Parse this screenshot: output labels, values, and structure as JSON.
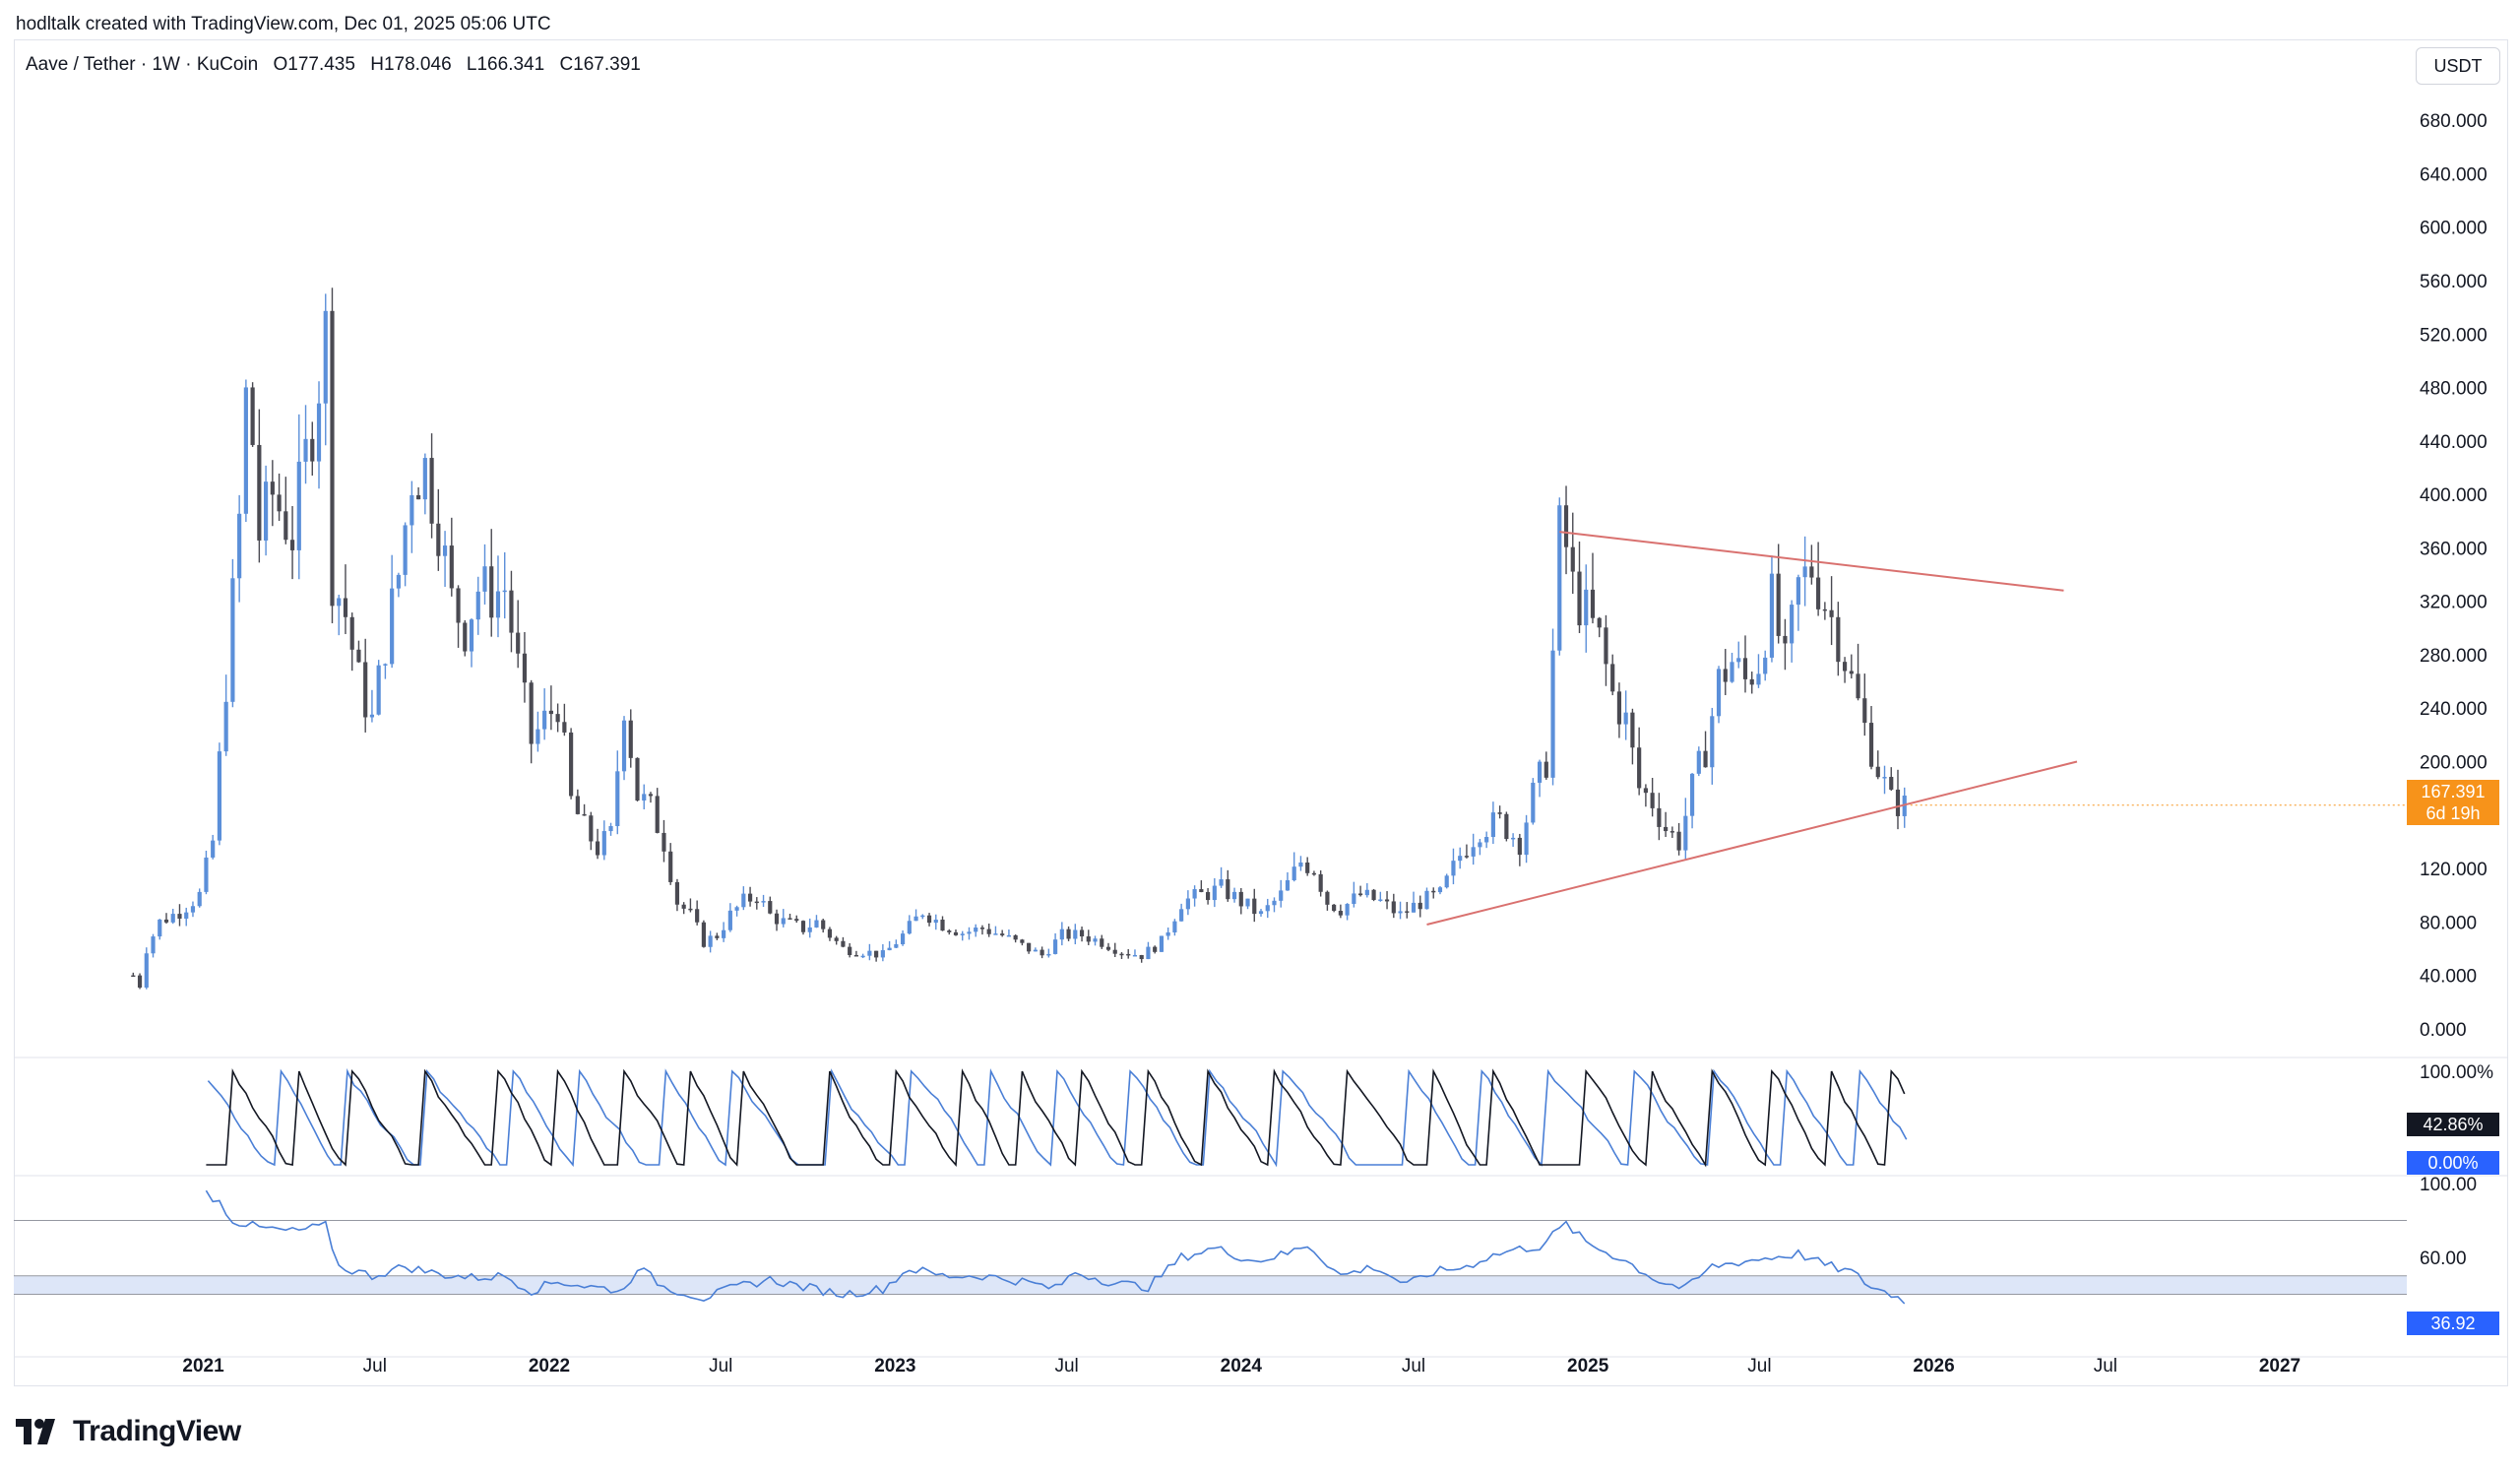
{
  "caption": "hodltalk created with TradingView.com, Dec 01, 2025 05:06 UTC",
  "legend": {
    "symbol": "Aave / Tether · 1W · KuCoin",
    "open": "O177.435",
    "high": "H178.046",
    "low": "L166.341",
    "close": "C167.391"
  },
  "currency_button": "USDT",
  "brand": "TradingView",
  "colors": {
    "up": "#5b8fd9",
    "down": "#4a4a52",
    "trendline": "#d9716f",
    "price_badge": "#f7931a",
    "stoch_k": "#131722",
    "stoch_d": "#4a7fd6",
    "rsi": "#4a7fd6",
    "rsi_band": "#dde6f8"
  },
  "price_badge": {
    "price": "167.391",
    "countdown": "6d 19h"
  },
  "stoch_labels": {
    "k": "42.86%",
    "d": "0.00%"
  },
  "rsi_label": "36.92",
  "chart_data": [
    {
      "type": "candlestick",
      "title": "",
      "interval": "1W",
      "ylim": [
        -20,
        700
      ],
      "y_ticks": [
        "680.000",
        "640.000",
        "600.000",
        "560.000",
        "520.000",
        "480.000",
        "440.000",
        "400.000",
        "360.000",
        "320.000",
        "280.000",
        "240.000",
        "200.000",
        "160.000",
        "120.000",
        "80.000",
        "40.000",
        "0.000"
      ],
      "x_range": [
        "2020-06-15",
        "2027-05-15"
      ],
      "x_ticks": [
        {
          "date": "2021-01-01",
          "label": "2021",
          "bold": true
        },
        {
          "date": "2021-07-01",
          "label": "Jul",
          "bold": false
        },
        {
          "date": "2022-01-01",
          "label": "2022",
          "bold": true
        },
        {
          "date": "2022-07-01",
          "label": "Jul",
          "bold": false
        },
        {
          "date": "2023-01-01",
          "label": "2023",
          "bold": true
        },
        {
          "date": "2023-07-01",
          "label": "Jul",
          "bold": false
        },
        {
          "date": "2024-01-01",
          "label": "2024",
          "bold": true
        },
        {
          "date": "2024-07-01",
          "label": "Jul",
          "bold": false
        },
        {
          "date": "2025-01-01",
          "label": "2025",
          "bold": true
        },
        {
          "date": "2025-07-01",
          "label": "Jul",
          "bold": false
        },
        {
          "date": "2026-01-01",
          "label": "2026",
          "bold": true
        },
        {
          "date": "2026-07-01",
          "label": "Jul",
          "bold": false
        },
        {
          "date": "2027-01-01",
          "label": "2027",
          "bold": true
        }
      ],
      "keypoints": [
        [
          "2020-10-19",
          40,
          "2020-10-26",
          32,
          "2020-11-02",
          60,
          "2020-11-16",
          80,
          "2020-12-07",
          88,
          "2020-12-28",
          100,
          "2021-01-11",
          140,
          "2021-01-25",
          260,
          "2021-02-08",
          380,
          "2021-02-15",
          470,
          "2021-02-22",
          440,
          "2021-03-01",
          370,
          "2021-03-15",
          400,
          "2021-04-05",
          370,
          "2021-04-26",
          455,
          "2021-05-10",
          520,
          "2021-05-17",
          340,
          "2021-05-31",
          310,
          "2021-06-14",
          260,
          "2021-06-28",
          230,
          "2021-07-12",
          290,
          "2021-07-26",
          340,
          "2021-08-09",
          415,
          "2021-08-23",
          420,
          "2021-09-06",
          380,
          "2021-09-20",
          320,
          "2021-10-04",
          300,
          "2021-10-18",
          330,
          "2021-11-01",
          325,
          "2021-11-15",
          330,
          "2021-11-29",
          270,
          "2021-12-13",
          215,
          "2021-12-27",
          230,
          "2022-01-10",
          245,
          "2022-01-24",
          170,
          "2022-02-07",
          150,
          "2022-02-21",
          135,
          "2022-03-07",
          145,
          "2022-03-21",
          245,
          "2022-04-04",
          175,
          "2022-04-18",
          165,
          "2022-05-02",
          140,
          "2022-05-16",
          95,
          "2022-05-30",
          85,
          "2022-06-13",
          65,
          "2022-06-27",
          70,
          "2022-07-11",
          85,
          "2022-07-25",
          95,
          "2022-08-08",
          100,
          "2022-08-22",
          85,
          "2022-09-05",
          80,
          "2022-09-26",
          75,
          "2022-10-10",
          80,
          "2022-11-07",
          60,
          "2022-11-28",
          58,
          "2022-12-19",
          55,
          "2023-01-09",
          70,
          "2023-01-30",
          88,
          "2023-02-20",
          78,
          "2023-03-13",
          72,
          "2023-04-03",
          75,
          "2023-04-24",
          70,
          "2023-05-15",
          62,
          "2023-06-05",
          55,
          "2023-06-26",
          70,
          "2023-07-17",
          70,
          "2023-08-07",
          65,
          "2023-08-28",
          58,
          "2023-09-18",
          55,
          "2023-10-09",
          65,
          "2023-10-30",
          95,
          "2023-11-20",
          100,
          "2023-12-11",
          105,
          "2024-01-01",
          95,
          "2024-01-22",
          85,
          "2024-02-12",
          100,
          "2024-03-04",
          125,
          "2024-03-18",
          120,
          "2024-04-01",
          95,
          "2024-04-15",
          90,
          "2024-05-06",
          100,
          "2024-05-27",
          95,
          "2024-06-17",
          85,
          "2024-07-08",
          95,
          "2024-07-29",
          100,
          "2024-08-19",
          130,
          "2024-09-09",
          150,
          "2024-09-30",
          155,
          "2024-10-21",
          140,
          "2024-11-04",
          175,
          "2024-11-18",
          200,
          "2024-11-25",
          280,
          "2024-12-02",
          370,
          "2024-12-09",
          360,
          "2024-12-16",
          330,
          "2024-12-30",
          310,
          "2025-01-13",
          290,
          "2025-01-27",
          250,
          "2025-02-10",
          230,
          "2025-02-24",
          180,
          "2025-03-10",
          170,
          "2025-03-24",
          150,
          "2025-04-07",
          140,
          "2025-04-21",
          180,
          "2025-05-05",
          210,
          "2025-05-19",
          260,
          "2025-06-02",
          275,
          "2025-06-16",
          260,
          "2025-06-30",
          275,
          "2025-07-14",
          320,
          "2025-07-28",
          270,
          "2025-08-11",
          330,
          "2025-08-25",
          345,
          "2025-09-08",
          320,
          "2025-09-22",
          295,
          "2025-10-06",
          260,
          "2025-10-20",
          225,
          "2025-11-03",
          195,
          "2025-11-17",
          170,
          "2025-12-01",
          167
        ]
      ],
      "trendlines": [
        {
          "from": [
            "2024-12-02",
            372
          ],
          "to": [
            "2026-05-18",
            328
          ]
        },
        {
          "from": [
            "2024-07-15",
            78
          ],
          "to": [
            "2026-06-01",
            200
          ]
        }
      ]
    },
    {
      "type": "line",
      "name_hidden": true,
      "ylim": [
        0,
        100
      ],
      "y_ticks": [
        "100.00%"
      ],
      "series_roles": [
        "k",
        "d"
      ]
    },
    {
      "type": "line",
      "ylim": [
        20,
        100
      ],
      "y_ticks": [
        "100.00",
        "60.00"
      ],
      "levels": [
        80,
        50,
        40
      ],
      "band": [
        40,
        50
      ],
      "keypoints": [
        "2021-01-04",
        95,
        "2021-01-18",
        90,
        "2021-02-01",
        80,
        "2021-03-01",
        76,
        "2021-04-05",
        74,
        "2021-05-10",
        77,
        "2021-05-24",
        55,
        "2021-06-28",
        50,
        "2021-08-02",
        55,
        "2021-09-06",
        51,
        "2021-10-11",
        49,
        "2021-11-15",
        50,
        "2021-12-13",
        42,
        "2022-01-10",
        47,
        "2022-02-14",
        44,
        "2022-03-21",
        42,
        "2022-04-04",
        55,
        "2022-05-02",
        44,
        "2022-06-13",
        38,
        "2022-07-18",
        44,
        "2022-08-22",
        48,
        "2022-09-26",
        44,
        "2022-11-07",
        40,
        "2022-12-19",
        43,
        "2023-01-16",
        54,
        "2023-02-20",
        50,
        "2023-04-03",
        50,
        "2023-05-15",
        47,
        "2023-06-19",
        43,
        "2023-07-10",
        52,
        "2023-08-21",
        46,
        "2023-09-25",
        44,
        "2023-10-30",
        60,
        "2023-12-04",
        65,
        "2024-01-15",
        58,
        "2024-02-19",
        62,
        "2024-03-11",
        67,
        "2024-04-15",
        50,
        "2024-05-20",
        55,
        "2024-06-24",
        45,
        "2024-07-22",
        52,
        "2024-08-26",
        55,
        "2024-09-16",
        60,
        "2024-10-14",
        64,
        "2024-11-11",
        66,
        "2024-11-25",
        72,
        "2024-12-09",
        78,
        "2024-12-30",
        68,
        "2025-02-10",
        58,
        "2025-03-17",
        47,
        "2025-04-14",
        43,
        "2025-05-12",
        55,
        "2025-06-16",
        58,
        "2025-07-14",
        60,
        "2025-08-11",
        62,
        "2025-09-08",
        56,
        "2025-10-06",
        52,
        "2025-10-27",
        44,
        "2025-11-17",
        40,
        "2025-12-01",
        37
      ]
    }
  ]
}
